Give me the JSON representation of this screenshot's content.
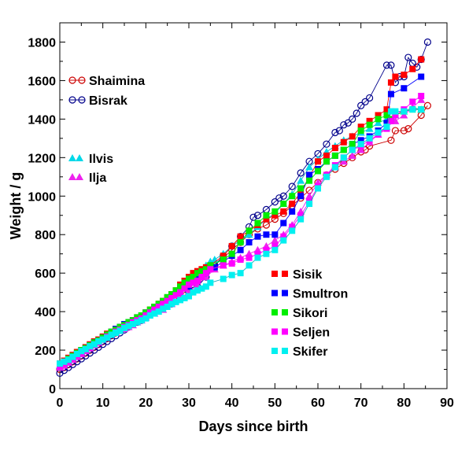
{
  "chart_data": {
    "type": "line",
    "title": "",
    "xlabel": "Days since birth",
    "ylabel": "Weight / g",
    "xlim": [
      0,
      90
    ],
    "ylim": [
      0,
      1900
    ],
    "xticks": [
      0,
      10,
      20,
      30,
      40,
      50,
      60,
      70,
      80,
      90
    ],
    "yticks": [
      0,
      200,
      400,
      600,
      800,
      1000,
      1200,
      1400,
      1600,
      1800
    ],
    "grid": false,
    "legend_groups": [
      {
        "position": "top-left",
        "entries": [
          "Shaimina",
          "Bisrak"
        ]
      },
      {
        "position": "upper-left",
        "entries": [
          "Ilvis",
          "Ilja"
        ]
      },
      {
        "position": "lower-right",
        "entries": [
          "Sisik",
          "Smultron",
          "Sikori",
          "Seljen",
          "Skifer"
        ]
      }
    ],
    "series": [
      {
        "name": "Shaimina",
        "color": "#cc0000",
        "marker": "open-circle",
        "x": [
          0,
          1,
          2,
          3,
          4,
          5,
          6,
          7,
          8,
          9,
          10,
          11,
          12,
          13,
          14,
          15,
          16,
          17,
          18,
          19,
          20,
          22,
          24,
          26,
          28,
          30,
          32,
          34,
          36,
          38,
          40,
          42,
          44,
          46,
          48,
          50,
          52,
          54,
          56,
          58,
          60,
          62,
          64,
          66,
          68,
          70,
          71,
          72,
          77,
          78,
          80,
          81,
          84,
          85.5
        ],
        "y": [
          100,
          110,
          125,
          140,
          155,
          170,
          185,
          200,
          215,
          230,
          245,
          260,
          275,
          290,
          305,
          315,
          325,
          340,
          350,
          360,
          375,
          395,
          420,
          450,
          480,
          520,
          560,
          600,
          640,
          680,
          720,
          760,
          800,
          830,
          850,
          880,
          910,
          950,
          990,
          1030,
          1070,
          1110,
          1140,
          1170,
          1200,
          1230,
          1240,
          1260,
          1290,
          1340,
          1340,
          1350,
          1420,
          1470
        ]
      },
      {
        "name": "Bisrak",
        "color": "#00008b",
        "marker": "open-circle",
        "x": [
          0,
          1,
          2,
          3,
          4,
          5,
          6,
          7,
          8,
          9,
          10,
          11,
          12,
          13,
          14,
          15,
          16,
          17,
          18,
          19,
          20,
          22,
          24,
          26,
          28,
          30,
          31,
          32,
          34,
          36,
          38,
          40,
          42,
          44,
          45,
          46,
          48,
          50,
          51,
          52,
          54,
          56,
          58,
          60,
          62,
          64,
          65,
          66,
          67,
          68,
          69,
          70,
          71,
          72,
          76,
          77,
          78,
          79,
          80,
          81,
          82,
          83,
          84,
          85.5
        ],
        "y": [
          80,
          95,
          110,
          125,
          140,
          155,
          170,
          185,
          200,
          215,
          230,
          245,
          260,
          275,
          290,
          305,
          320,
          335,
          345,
          355,
          370,
          395,
          420,
          440,
          470,
          500,
          510,
          530,
          580,
          640,
          690,
          740,
          790,
          840,
          890,
          900,
          930,
          970,
          990,
          1000,
          1050,
          1120,
          1180,
          1220,
          1270,
          1330,
          1340,
          1370,
          1380,
          1400,
          1430,
          1470,
          1490,
          1510,
          1680,
          1680,
          1590,
          1620,
          1620,
          1720,
          1690,
          1670,
          1710,
          1800
        ]
      },
      {
        "name": "Ilvis",
        "color": "#00d8e8",
        "marker": "filled-triangle",
        "x": [
          0,
          1,
          2,
          3,
          4,
          5,
          6,
          7,
          8,
          9,
          10,
          11,
          12,
          13,
          14,
          15,
          16,
          17,
          18,
          19,
          20,
          22,
          24,
          26,
          28,
          30,
          32,
          34,
          35,
          36,
          38,
          40,
          42,
          44,
          46,
          48,
          50,
          52,
          54,
          56,
          58,
          60,
          62,
          64,
          66,
          68,
          70,
          72,
          74,
          76,
          78,
          80,
          82,
          84
        ],
        "y": [
          120,
          130,
          145,
          160,
          175,
          190,
          205,
          215,
          230,
          245,
          255,
          270,
          285,
          300,
          310,
          325,
          335,
          350,
          360,
          375,
          385,
          410,
          440,
          460,
          500,
          550,
          600,
          640,
          660,
          670,
          700,
          740,
          770,
          800,
          840,
          880,
          910,
          960,
          1010,
          1080,
          1150,
          1190,
          1230,
          1260,
          1290,
          1310,
          1330,
          1350,
          1380,
          1400,
          1420,
          1440,
          1460,
          1450
        ]
      },
      {
        "name": "Ilja",
        "color": "#ee22ee",
        "marker": "filled-triangle",
        "x": [
          0,
          1,
          2,
          3,
          4,
          5,
          6,
          7,
          8,
          9,
          10,
          11,
          12,
          13,
          14,
          15,
          16,
          17,
          18,
          19,
          20,
          22,
          24,
          26,
          28,
          30,
          32,
          34,
          36,
          38,
          40,
          42,
          44,
          46,
          48,
          50,
          52,
          54,
          56,
          58,
          60,
          62,
          64,
          66,
          68,
          70,
          72,
          74,
          76,
          78,
          80,
          82,
          84
        ],
        "y": [
          110,
          120,
          135,
          150,
          165,
          180,
          195,
          210,
          225,
          240,
          255,
          265,
          280,
          290,
          300,
          310,
          320,
          330,
          345,
          355,
          370,
          390,
          410,
          440,
          470,
          500,
          540,
          580,
          620,
          640,
          660,
          680,
          700,
          720,
          740,
          770,
          800,
          850,
          920,
          1000,
          1070,
          1110,
          1150,
          1180,
          1210,
          1240,
          1280,
          1320,
          1360,
          1390,
          1420,
          1460,
          1500
        ]
      },
      {
        "name": "Sisik",
        "color": "#ff0000",
        "marker": "filled-square",
        "x": [
          0,
          1,
          2,
          3,
          4,
          5,
          6,
          7,
          8,
          9,
          10,
          11,
          12,
          13,
          14,
          15,
          16,
          17,
          18,
          19,
          20,
          21,
          22,
          23,
          24,
          25,
          26,
          27,
          28,
          29,
          30,
          31,
          32,
          33,
          34,
          35,
          38,
          40,
          42,
          44,
          46,
          48,
          50,
          52,
          54,
          56,
          58,
          60,
          62,
          64,
          66,
          68,
          70,
          72,
          74,
          76,
          77,
          78,
          80,
          82,
          84
        ],
        "y": [
          130,
          145,
          160,
          175,
          190,
          200,
          215,
          230,
          245,
          255,
          270,
          285,
          295,
          310,
          320,
          330,
          345,
          355,
          370,
          380,
          395,
          410,
          425,
          440,
          455,
          470,
          490,
          510,
          540,
          560,
          580,
          600,
          610,
          620,
          630,
          640,
          690,
          740,
          790,
          820,
          850,
          880,
          900,
          920,
          960,
          1020,
          1100,
          1180,
          1210,
          1250,
          1280,
          1310,
          1360,
          1390,
          1420,
          1450,
          1590,
          1620,
          1630,
          1660,
          1710
        ]
      },
      {
        "name": "Smultron",
        "color": "#0000ff",
        "marker": "filled-square",
        "x": [
          0,
          1,
          2,
          3,
          4,
          5,
          6,
          7,
          8,
          9,
          10,
          11,
          12,
          13,
          14,
          15,
          16,
          17,
          18,
          19,
          20,
          22,
          24,
          26,
          28,
          30,
          32,
          34,
          36,
          38,
          40,
          42,
          44,
          46,
          48,
          50,
          52,
          54,
          56,
          58,
          60,
          62,
          64,
          66,
          68,
          70,
          72,
          74,
          76,
          77,
          80,
          84
        ],
        "y": [
          120,
          135,
          150,
          165,
          180,
          195,
          210,
          225,
          240,
          250,
          265,
          280,
          295,
          310,
          320,
          335,
          345,
          355,
          370,
          380,
          395,
          420,
          445,
          470,
          500,
          530,
          570,
          600,
          630,
          660,
          690,
          720,
          760,
          790,
          800,
          800,
          860,
          920,
          1000,
          1110,
          1140,
          1180,
          1210,
          1240,
          1270,
          1290,
          1310,
          1340,
          1380,
          1530,
          1560,
          1620
        ]
      },
      {
        "name": "Sikori",
        "color": "#00ee00",
        "marker": "filled-square",
        "x": [
          0,
          1,
          2,
          3,
          4,
          5,
          6,
          7,
          8,
          9,
          10,
          11,
          12,
          13,
          14,
          15,
          16,
          17,
          18,
          19,
          20,
          21,
          22,
          23,
          24,
          25,
          26,
          27,
          28,
          29,
          30,
          31,
          32,
          33,
          34,
          35,
          38,
          40,
          42,
          44,
          46,
          48,
          50,
          52,
          54,
          56,
          58,
          60,
          62,
          64,
          66,
          68,
          70,
          72,
          74,
          76,
          77,
          78,
          80,
          82,
          84
        ],
        "y": [
          125,
          140,
          155,
          170,
          185,
          200,
          210,
          225,
          240,
          250,
          265,
          280,
          295,
          305,
          320,
          330,
          345,
          355,
          370,
          380,
          395,
          410,
          425,
          440,
          455,
          475,
          490,
          510,
          530,
          550,
          570,
          580,
          600,
          610,
          620,
          640,
          670,
          700,
          760,
          820,
          860,
          900,
          920,
          960,
          1000,
          1040,
          1080,
          1130,
          1180,
          1210,
          1240,
          1270,
          1340,
          1370,
          1400,
          1420,
          1400,
          1420,
          1440,
          1450,
          1450
        ]
      },
      {
        "name": "Seljen",
        "color": "#ff00ff",
        "marker": "filled-square",
        "x": [
          0,
          1,
          2,
          3,
          4,
          5,
          6,
          7,
          8,
          9,
          10,
          11,
          12,
          13,
          14,
          15,
          16,
          17,
          18,
          19,
          20,
          21,
          22,
          23,
          24,
          25,
          26,
          27,
          28,
          29,
          30,
          31,
          32,
          33,
          34,
          35,
          38,
          40,
          42,
          44,
          46,
          48,
          50,
          52,
          54,
          56,
          58,
          60,
          62,
          64,
          66,
          68,
          70,
          72,
          74,
          76,
          77,
          78,
          80,
          82,
          84
        ],
        "y": [
          115,
          130,
          145,
          160,
          175,
          185,
          200,
          215,
          230,
          240,
          255,
          270,
          280,
          295,
          305,
          320,
          330,
          345,
          355,
          365,
          380,
          395,
          410,
          425,
          440,
          455,
          470,
          485,
          500,
          520,
          540,
          550,
          560,
          580,
          600,
          620,
          640,
          650,
          670,
          680,
          700,
          720,
          740,
          790,
          840,
          900,
          970,
          1050,
          1110,
          1160,
          1200,
          1240,
          1260,
          1290,
          1320,
          1350,
          1390,
          1420,
          1450,
          1490,
          1520
        ]
      },
      {
        "name": "Skifer",
        "color": "#00f0f0",
        "marker": "filled-square",
        "x": [
          0,
          1,
          2,
          3,
          4,
          5,
          6,
          7,
          8,
          9,
          10,
          11,
          12,
          13,
          14,
          15,
          16,
          17,
          18,
          19,
          20,
          21,
          22,
          23,
          24,
          25,
          26,
          27,
          28,
          29,
          30,
          31,
          32,
          33,
          34,
          35,
          38,
          40,
          42,
          44,
          46,
          48,
          50,
          52,
          54,
          56,
          58,
          60,
          62,
          64,
          66,
          68,
          70,
          72,
          74,
          76,
          77,
          78,
          80,
          82,
          84
        ],
        "y": [
          130,
          140,
          150,
          165,
          180,
          195,
          205,
          220,
          230,
          245,
          255,
          265,
          280,
          290,
          300,
          315,
          325,
          335,
          345,
          355,
          365,
          380,
          390,
          400,
          415,
          425,
          440,
          450,
          460,
          470,
          480,
          500,
          510,
          520,
          530,
          550,
          570,
          590,
          600,
          640,
          680,
          700,
          720,
          770,
          820,
          880,
          960,
          1040,
          1100,
          1150,
          1200,
          1240,
          1270,
          1300,
          1330,
          1360,
          1440,
          1440,
          1440,
          1450,
          1450
        ]
      }
    ]
  }
}
